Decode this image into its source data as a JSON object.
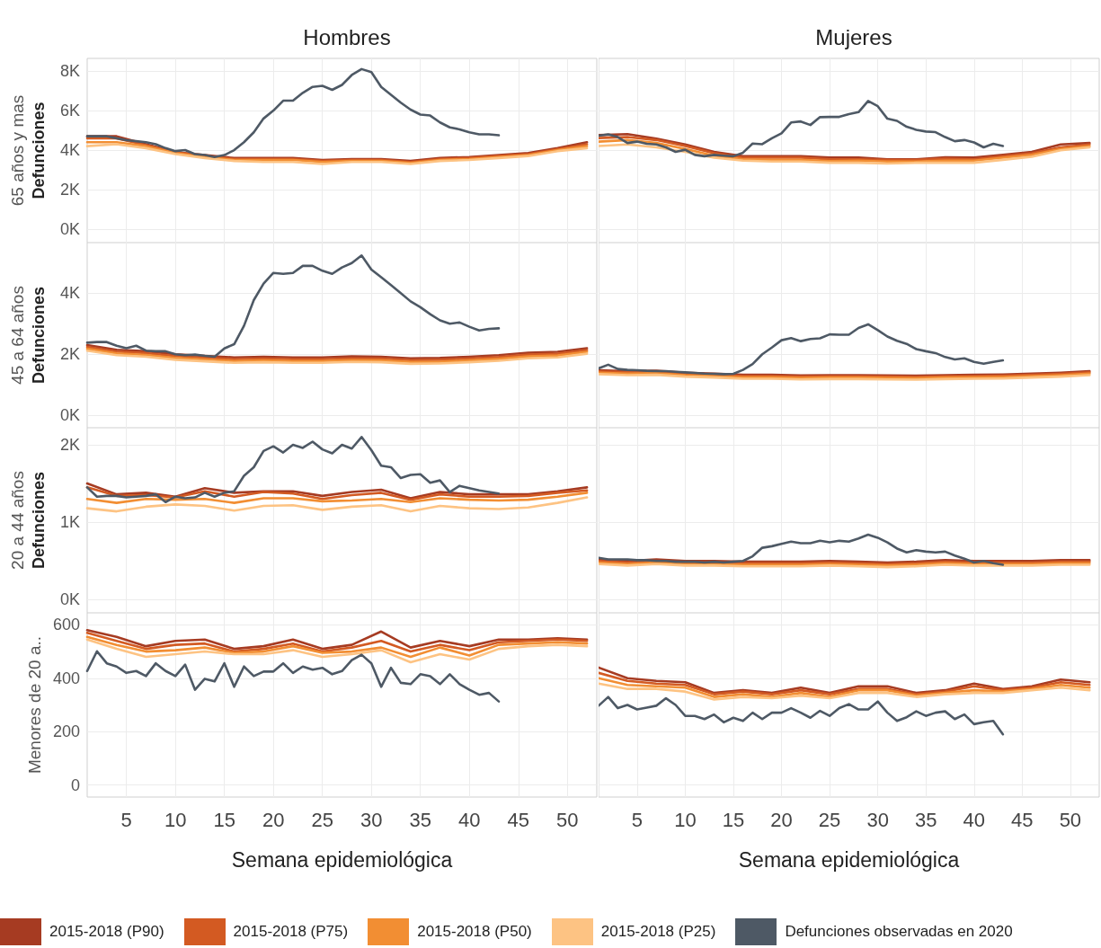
{
  "chart_data": [
    {
      "type": "line",
      "title": "Hombres",
      "ylabel": "65 años y mas\nDefunciones",
      "x": [
        1,
        4,
        7,
        10,
        13,
        16,
        19,
        22,
        25,
        28,
        31,
        34,
        37,
        40,
        43,
        46,
        49,
        52
      ],
      "xlim": [
        1,
        53
      ],
      "xticks": [
        5,
        10,
        15,
        20,
        25,
        30,
        35,
        40,
        45,
        50
      ],
      "ylim": [
        -680,
        8640
      ],
      "yticks": [
        {
          "value": 0,
          "label": "0K"
        },
        {
          "value": 2000,
          "label": "2K"
        },
        {
          "value": 4000,
          "label": "4K"
        },
        {
          "value": 6000,
          "label": "6K"
        },
        {
          "value": 8000,
          "label": "8K"
        }
      ],
      "grid": true,
      "legend": "bottom",
      "tick_labels": "y",
      "series": [
        {
          "name": "2015-2018 (P90)",
          "color": "#a63b22",
          "values": [
            4700,
            4700,
            4300,
            3900,
            3750,
            3600,
            3600,
            3600,
            3500,
            3550,
            3550,
            3450,
            3600,
            3650,
            3750,
            3850,
            4100,
            4400
          ]
        },
        {
          "name": "2015-2018 (P75)",
          "color": "#d35a22",
          "values": [
            4600,
            4600,
            4250,
            3900,
            3700,
            3550,
            3550,
            3550,
            3450,
            3500,
            3500,
            3400,
            3550,
            3600,
            3700,
            3800,
            4050,
            4300
          ]
        },
        {
          "name": "2015-2018 (P50)",
          "color": "#f28e33",
          "values": [
            4400,
            4400,
            4200,
            3850,
            3650,
            3500,
            3500,
            3500,
            3400,
            3450,
            3450,
            3350,
            3500,
            3550,
            3650,
            3750,
            4000,
            4200
          ]
        },
        {
          "name": "2015-2018 (P25)",
          "color": "#fdc383",
          "values": [
            4200,
            4300,
            4100,
            3800,
            3600,
            3450,
            3400,
            3400,
            3300,
            3400,
            3400,
            3300,
            3450,
            3500,
            3600,
            3700,
            3950,
            4100
          ]
        },
        {
          "name": "Defunciones observadas en 2020",
          "color": "#4e5965",
          "x": [
            1,
            2,
            3,
            4,
            5,
            6,
            7,
            8,
            9,
            10,
            11,
            12,
            13,
            14,
            15,
            16,
            17,
            18,
            19,
            20,
            21,
            22,
            23,
            24,
            25,
            26,
            27,
            28,
            29,
            30,
            31,
            32,
            33,
            34,
            35,
            36,
            37,
            38,
            39,
            40,
            41,
            42,
            43
          ],
          "values": [
            4700,
            4700,
            4700,
            4600,
            4500,
            4450,
            4400,
            4300,
            4100,
            3950,
            4000,
            3800,
            3750,
            3650,
            3750,
            4000,
            4400,
            4900,
            5600,
            6000,
            6500,
            6500,
            6900,
            7200,
            7250,
            7050,
            7300,
            7800,
            8100,
            7950,
            7200,
            6800,
            6400,
            6050,
            5800,
            5750,
            5400,
            5150,
            5050,
            4900,
            4800,
            4800,
            4750
          ]
        }
      ]
    },
    {
      "type": "line",
      "title": "Mujeres",
      "x": [
        1,
        4,
        7,
        10,
        13,
        16,
        19,
        22,
        25,
        28,
        31,
        34,
        37,
        40,
        43,
        46,
        49,
        52
      ],
      "xlim": [
        1,
        53
      ],
      "xticks": [
        5,
        10,
        15,
        20,
        25,
        30,
        35,
        40,
        45,
        50
      ],
      "ylim": [
        -680,
        8640
      ],
      "yticks": [
        0,
        2000,
        4000,
        6000,
        8000
      ],
      "grid": true,
      "tick_labels": false,
      "series": [
        {
          "color": "#a63b22",
          "values": [
            4760,
            4810,
            4580,
            4290,
            3910,
            3690,
            3690,
            3690,
            3620,
            3620,
            3540,
            3540,
            3640,
            3620,
            3760,
            3910,
            4290,
            4360
          ]
        },
        {
          "color": "#d35a22",
          "values": [
            4610,
            4660,
            4510,
            4210,
            3840,
            3620,
            3620,
            3620,
            3540,
            3540,
            3500,
            3500,
            3570,
            3540,
            3690,
            3840,
            4140,
            4290
          ]
        },
        {
          "color": "#f28e33",
          "values": [
            4430,
            4510,
            4360,
            4060,
            3720,
            3540,
            3510,
            3510,
            3440,
            3470,
            3420,
            3420,
            3470,
            3470,
            3620,
            3760,
            4060,
            4210
          ]
        },
        {
          "color": "#fdc383",
          "values": [
            4210,
            4290,
            4140,
            3910,
            3620,
            3470,
            3420,
            3420,
            3360,
            3360,
            3320,
            3360,
            3360,
            3360,
            3510,
            3660,
            3990,
            4140
          ]
        },
        {
          "color": "#4e5965",
          "x": [
            1,
            2,
            3,
            4,
            5,
            6,
            7,
            8,
            9,
            10,
            11,
            12,
            13,
            14,
            15,
            16,
            17,
            18,
            19,
            20,
            21,
            22,
            23,
            24,
            25,
            26,
            27,
            28,
            29,
            30,
            31,
            32,
            33,
            34,
            35,
            36,
            37,
            38,
            39,
            40,
            41,
            42,
            43
          ],
          "values": [
            4730,
            4800,
            4660,
            4360,
            4430,
            4320,
            4290,
            4140,
            3910,
            4020,
            3760,
            3690,
            3760,
            3720,
            3690,
            3870,
            4330,
            4300,
            4600,
            4850,
            5400,
            5450,
            5270,
            5670,
            5680,
            5680,
            5820,
            5920,
            6490,
            6220,
            5590,
            5480,
            5180,
            5030,
            4940,
            4910,
            4660,
            4450,
            4510,
            4390,
            4140,
            4320,
            4210
          ]
        }
      ]
    },
    {
      "type": "line",
      "ylabel": "45 a 64 años\nDefunciones",
      "x": [
        1,
        4,
        7,
        10,
        13,
        16,
        19,
        22,
        25,
        28,
        31,
        34,
        37,
        40,
        43,
        46,
        49,
        52
      ],
      "xlim": [
        1,
        53
      ],
      "xticks": [
        5,
        10,
        15,
        20,
        25,
        30,
        35,
        40,
        45,
        50
      ],
      "ylim": [
        -400,
        5650
      ],
      "yticks": [
        {
          "value": 0,
          "label": "0K"
        },
        {
          "value": 2000,
          "label": "2K"
        },
        {
          "value": 4000,
          "label": "4K"
        }
      ],
      "grid": true,
      "tick_labels": "y",
      "series": [
        {
          "color": "#a63b22",
          "values": [
            2300,
            2150,
            2100,
            2000,
            1950,
            1900,
            1920,
            1900,
            1900,
            1930,
            1920,
            1870,
            1880,
            1920,
            1970,
            2050,
            2080,
            2200
          ]
        },
        {
          "color": "#d35a22",
          "values": [
            2240,
            2090,
            2040,
            1940,
            1890,
            1840,
            1860,
            1840,
            1840,
            1870,
            1860,
            1810,
            1820,
            1860,
            1910,
            1990,
            2020,
            2140
          ]
        },
        {
          "color": "#f28e33",
          "values": [
            2180,
            2030,
            1980,
            1880,
            1830,
            1780,
            1800,
            1780,
            1780,
            1810,
            1800,
            1750,
            1760,
            1800,
            1850,
            1930,
            1960,
            2080
          ]
        },
        {
          "color": "#fdc383",
          "values": [
            2120,
            1970,
            1920,
            1820,
            1770,
            1720,
            1740,
            1720,
            1720,
            1750,
            1740,
            1690,
            1700,
            1740,
            1790,
            1870,
            1900,
            2020
          ]
        },
        {
          "color": "#4e5965",
          "x": [
            1,
            2,
            3,
            4,
            5,
            6,
            7,
            8,
            9,
            10,
            11,
            12,
            13,
            14,
            15,
            16,
            17,
            18,
            19,
            20,
            21,
            22,
            23,
            24,
            25,
            26,
            27,
            28,
            29,
            30,
            31,
            32,
            33,
            34,
            35,
            36,
            37,
            38,
            39,
            40,
            41,
            42,
            43
          ],
          "values": [
            2380,
            2400,
            2400,
            2280,
            2200,
            2280,
            2120,
            2100,
            2100,
            2000,
            1970,
            1990,
            1950,
            1920,
            2190,
            2330,
            2930,
            3770,
            4310,
            4660,
            4630,
            4660,
            4890,
            4890,
            4730,
            4630,
            4840,
            4980,
            5230,
            4770,
            4520,
            4260,
            4000,
            3730,
            3540,
            3310,
            3110,
            3000,
            3040,
            2900,
            2780,
            2830,
            2850
          ]
        }
      ]
    },
    {
      "type": "line",
      "x": [
        1,
        4,
        7,
        10,
        13,
        16,
        19,
        22,
        25,
        28,
        31,
        34,
        37,
        40,
        43,
        46,
        49,
        52
      ],
      "xlim": [
        1,
        53
      ],
      "xticks": [
        5,
        10,
        15,
        20,
        25,
        30,
        35,
        40,
        45,
        50
      ],
      "ylim": [
        -400,
        5650
      ],
      "yticks": [
        0,
        2000,
        4000
      ],
      "grid": true,
      "tick_labels": false,
      "series": [
        {
          "color": "#a63b22",
          "values": [
            1480,
            1450,
            1460,
            1400,
            1370,
            1330,
            1330,
            1310,
            1320,
            1320,
            1310,
            1300,
            1320,
            1330,
            1340,
            1370,
            1400,
            1450
          ]
        },
        {
          "color": "#d35a22",
          "values": [
            1440,
            1410,
            1420,
            1360,
            1330,
            1290,
            1290,
            1270,
            1280,
            1280,
            1270,
            1260,
            1280,
            1290,
            1300,
            1330,
            1360,
            1410
          ]
        },
        {
          "color": "#f28e33",
          "values": [
            1400,
            1370,
            1380,
            1320,
            1290,
            1250,
            1250,
            1230,
            1240,
            1240,
            1230,
            1220,
            1240,
            1250,
            1260,
            1290,
            1320,
            1370
          ]
        },
        {
          "color": "#fdc383",
          "values": [
            1350,
            1320,
            1330,
            1270,
            1240,
            1200,
            1200,
            1180,
            1190,
            1190,
            1180,
            1170,
            1190,
            1200,
            1210,
            1240,
            1270,
            1320
          ]
        },
        {
          "color": "#4e5965",
          "x": [
            1,
            2,
            3,
            4,
            5,
            6,
            7,
            8,
            9,
            10,
            11,
            12,
            13,
            14,
            15,
            16,
            17,
            18,
            19,
            20,
            21,
            22,
            23,
            24,
            25,
            26,
            27,
            28,
            29,
            30,
            31,
            32,
            33,
            34,
            35,
            36,
            37,
            38,
            39,
            40,
            41,
            42,
            43
          ],
          "values": [
            1540,
            1660,
            1520,
            1490,
            1480,
            1460,
            1450,
            1450,
            1430,
            1410,
            1390,
            1370,
            1360,
            1350,
            1360,
            1490,
            1680,
            2000,
            2220,
            2460,
            2530,
            2430,
            2500,
            2520,
            2650,
            2640,
            2640,
            2860,
            2980,
            2790,
            2580,
            2440,
            2340,
            2170,
            2100,
            2040,
            1910,
            1830,
            1870,
            1750,
            1690,
            1750,
            1800
          ]
        }
      ]
    },
    {
      "type": "line",
      "ylabel": "20 a 44 años\nDefunciones",
      "x": [
        1,
        4,
        7,
        10,
        13,
        16,
        19,
        22,
        25,
        28,
        31,
        34,
        37,
        40,
        43,
        46,
        49,
        52
      ],
      "xlim": [
        1,
        53
      ],
      "xticks": [
        5,
        10,
        15,
        20,
        25,
        30,
        35,
        40,
        45,
        50
      ],
      "ylim": [
        -170,
        2220
      ],
      "yticks": [
        {
          "value": 0,
          "label": "0K"
        },
        {
          "value": 1000,
          "label": "1K"
        },
        {
          "value": 2000,
          "label": "2K"
        }
      ],
      "grid": true,
      "tick_labels": "y",
      "series": [
        {
          "color": "#a63b22",
          "values": [
            1500,
            1360,
            1380,
            1330,
            1440,
            1380,
            1400,
            1400,
            1340,
            1390,
            1420,
            1310,
            1390,
            1360,
            1360,
            1360,
            1400,
            1450
          ]
        },
        {
          "color": "#d35a22",
          "values": [
            1450,
            1340,
            1350,
            1320,
            1400,
            1330,
            1390,
            1370,
            1300,
            1350,
            1380,
            1290,
            1360,
            1330,
            1330,
            1340,
            1380,
            1410
          ]
        },
        {
          "color": "#f28e33",
          "values": [
            1300,
            1250,
            1300,
            1290,
            1300,
            1250,
            1310,
            1310,
            1270,
            1280,
            1300,
            1260,
            1310,
            1290,
            1280,
            1290,
            1330,
            1380
          ]
        },
        {
          "color": "#fdc383",
          "values": [
            1180,
            1140,
            1200,
            1230,
            1210,
            1150,
            1210,
            1220,
            1160,
            1200,
            1220,
            1140,
            1210,
            1180,
            1170,
            1190,
            1250,
            1320
          ]
        },
        {
          "color": "#4e5965",
          "x": [
            1,
            2,
            3,
            4,
            5,
            6,
            7,
            8,
            9,
            10,
            11,
            12,
            13,
            14,
            15,
            16,
            17,
            18,
            19,
            20,
            21,
            22,
            23,
            24,
            25,
            26,
            27,
            28,
            29,
            30,
            31,
            32,
            33,
            34,
            35,
            36,
            37,
            38,
            39,
            40,
            41,
            42,
            43
          ],
          "values": [
            1450,
            1330,
            1340,
            1340,
            1320,
            1330,
            1340,
            1360,
            1260,
            1330,
            1310,
            1320,
            1380,
            1330,
            1380,
            1400,
            1600,
            1710,
            1920,
            1980,
            1900,
            2000,
            1960,
            2040,
            1940,
            1890,
            2000,
            1950,
            2100,
            1930,
            1730,
            1710,
            1570,
            1610,
            1620,
            1510,
            1540,
            1390,
            1470,
            1440,
            1410,
            1390,
            1370
          ]
        }
      ]
    },
    {
      "type": "line",
      "x": [
        1,
        4,
        7,
        10,
        13,
        16,
        19,
        22,
        25,
        28,
        31,
        34,
        37,
        40,
        43,
        46,
        49,
        52
      ],
      "xlim": [
        1,
        53
      ],
      "xticks": [
        5,
        10,
        15,
        20,
        25,
        30,
        35,
        40,
        45,
        50
      ],
      "ylim": [
        -170,
        2220
      ],
      "yticks": [
        0,
        1000,
        2000
      ],
      "grid": true,
      "tick_labels": false,
      "series": [
        {
          "color": "#a63b22",
          "values": [
            520,
            500,
            520,
            500,
            500,
            490,
            490,
            490,
            500,
            490,
            480,
            490,
            510,
            500,
            500,
            500,
            510,
            510
          ]
        },
        {
          "color": "#d35a22",
          "values": [
            500,
            480,
            500,
            480,
            480,
            470,
            470,
            470,
            480,
            470,
            460,
            470,
            490,
            480,
            480,
            480,
            490,
            490
          ]
        },
        {
          "color": "#f28e33",
          "values": [
            480,
            460,
            480,
            460,
            460,
            450,
            450,
            450,
            460,
            450,
            440,
            450,
            470,
            460,
            460,
            460,
            470,
            470
          ]
        },
        {
          "color": "#fdc383",
          "values": [
            460,
            440,
            460,
            440,
            440,
            430,
            430,
            430,
            440,
            430,
            420,
            430,
            450,
            440,
            440,
            440,
            450,
            450
          ]
        },
        {
          "color": "#4e5965",
          "x": [
            1,
            2,
            3,
            4,
            5,
            6,
            7,
            8,
            9,
            10,
            11,
            12,
            13,
            14,
            15,
            16,
            17,
            18,
            19,
            20,
            21,
            22,
            23,
            24,
            25,
            26,
            27,
            28,
            29,
            30,
            31,
            32,
            33,
            34,
            35,
            36,
            37,
            38,
            39,
            40,
            41,
            42,
            43
          ],
          "values": [
            540,
            520,
            520,
            520,
            510,
            510,
            500,
            500,
            490,
            490,
            490,
            480,
            490,
            480,
            490,
            500,
            560,
            670,
            690,
            720,
            750,
            730,
            730,
            760,
            740,
            760,
            750,
            790,
            840,
            800,
            740,
            660,
            610,
            640,
            620,
            610,
            620,
            570,
            530,
            480,
            500,
            470,
            450
          ]
        }
      ]
    },
    {
      "type": "line",
      "ylabel": "Menores de 20 a..",
      "xlabel": "Semana epidemiológica",
      "x": [
        1,
        4,
        7,
        10,
        13,
        16,
        19,
        22,
        25,
        28,
        31,
        34,
        37,
        40,
        43,
        46,
        49,
        52
      ],
      "xlim": [
        1,
        53
      ],
      "xticks": [
        5,
        10,
        15,
        20,
        25,
        30,
        35,
        40,
        45,
        50
      ],
      "ylim": [
        -45,
        645
      ],
      "yticks": [
        0,
        200,
        400,
        600
      ],
      "grid": true,
      "series": [
        {
          "color": "#a63b22",
          "values": [
            580,
            555,
            520,
            540,
            545,
            510,
            520,
            545,
            510,
            525,
            575,
            515,
            540,
            520,
            545,
            545,
            550,
            545
          ]
        },
        {
          "color": "#d35a22",
          "values": [
            570,
            540,
            510,
            525,
            530,
            500,
            510,
            530,
            500,
            515,
            540,
            500,
            525,
            505,
            535,
            540,
            545,
            540
          ]
        },
        {
          "color": "#f28e33",
          "values": [
            555,
            525,
            500,
            505,
            515,
            495,
            500,
            520,
            495,
            500,
            515,
            480,
            515,
            485,
            525,
            530,
            535,
            530
          ]
        },
        {
          "color": "#fdc383",
          "values": [
            545,
            510,
            480,
            490,
            500,
            490,
            490,
            505,
            480,
            490,
            505,
            460,
            490,
            470,
            510,
            520,
            525,
            520
          ]
        },
        {
          "color": "#4e5965",
          "x": [
            1,
            2,
            3,
            4,
            5,
            6,
            7,
            8,
            9,
            10,
            11,
            12,
            13,
            14,
            15,
            16,
            17,
            18,
            19,
            20,
            21,
            22,
            23,
            24,
            25,
            26,
            27,
            28,
            29,
            30,
            31,
            32,
            33,
            34,
            35,
            36,
            37,
            38,
            39,
            40,
            41,
            42,
            43
          ],
          "values": [
            427,
            501,
            456,
            444,
            420,
            427,
            408,
            456,
            427,
            408,
            451,
            357,
            398,
            388,
            456,
            368,
            444,
            408,
            425,
            425,
            456,
            420,
            444,
            432,
            439,
            415,
            427,
            468,
            488,
            456,
            368,
            439,
            383,
            378,
            415,
            408,
            378,
            415,
            378,
            357,
            338,
            345,
            313
          ]
        }
      ]
    },
    {
      "type": "line",
      "xlabel": "Semana epidemiológica",
      "x": [
        1,
        4,
        7,
        10,
        13,
        16,
        19,
        22,
        25,
        28,
        31,
        34,
        37,
        40,
        43,
        46,
        49,
        52
      ],
      "xlim": [
        1,
        53
      ],
      "xticks": [
        5,
        10,
        15,
        20,
        25,
        30,
        35,
        40,
        45,
        50
      ],
      "ylim": [
        -45,
        645
      ],
      "yticks": [
        0,
        200,
        400,
        600
      ],
      "grid": true,
      "tick_labels": "x",
      "series": [
        {
          "color": "#a63b22",
          "values": [
            440,
            400,
            390,
            385,
            345,
            355,
            345,
            365,
            345,
            370,
            370,
            345,
            355,
            380,
            360,
            370,
            395,
            385
          ]
        },
        {
          "color": "#d35a22",
          "values": [
            420,
            390,
            380,
            375,
            340,
            350,
            340,
            355,
            340,
            360,
            360,
            340,
            350,
            370,
            355,
            365,
            385,
            375
          ]
        },
        {
          "color": "#f28e33",
          "values": [
            400,
            375,
            370,
            365,
            330,
            340,
            330,
            345,
            330,
            355,
            355,
            335,
            345,
            355,
            350,
            360,
            375,
            365
          ]
        },
        {
          "color": "#fdc383",
          "values": [
            380,
            360,
            360,
            350,
            320,
            330,
            325,
            335,
            325,
            345,
            345,
            330,
            340,
            345,
            345,
            355,
            365,
            355
          ]
        },
        {
          "color": "#4e5965",
          "x": [
            1,
            2,
            3,
            4,
            5,
            6,
            7,
            8,
            9,
            10,
            11,
            12,
            13,
            14,
            15,
            16,
            17,
            18,
            19,
            20,
            21,
            22,
            23,
            24,
            25,
            26,
            27,
            28,
            29,
            30,
            31,
            32,
            33,
            34,
            35,
            36,
            37,
            38,
            39,
            40,
            41,
            42,
            43
          ],
          "values": [
            297,
            330,
            288,
            300,
            283,
            290,
            297,
            325,
            300,
            259,
            259,
            247,
            264,
            235,
            252,
            240,
            271,
            247,
            271,
            271,
            288,
            271,
            252,
            278,
            259,
            288,
            303,
            283,
            283,
            313,
            271,
            240,
            254,
            276,
            259,
            271,
            276,
            247,
            264,
            228,
            235,
            240,
            190
          ]
        }
      ]
    }
  ]
}
